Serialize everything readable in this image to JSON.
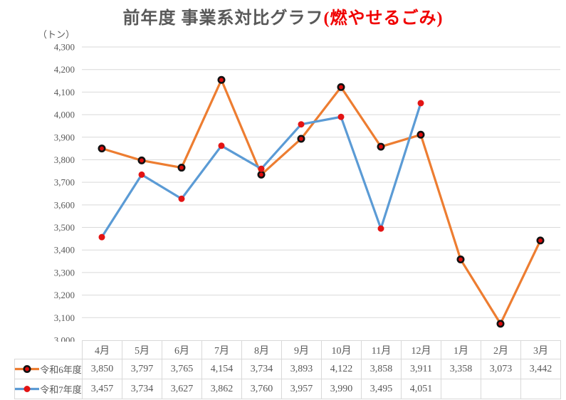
{
  "title": {
    "main": "前年度 事業系対比グラフ",
    "highlight": "(燃やせるごみ)"
  },
  "unit_label": "（トン）",
  "colors": {
    "grid": "#d9d9d9",
    "text": "#595959",
    "title_text": "#595959",
    "title_highlight": "#f00000",
    "table_border": "#d9d9d9",
    "series1_line": "#ED7D31",
    "series2_line": "#5B9BD5",
    "marker_red": "#e31414"
  },
  "chart_data": {
    "type": "line",
    "title": "前年度 事業系対比グラフ(燃やせるごみ)",
    "xlabel": "",
    "ylabel": "（トン）",
    "categories": [
      "4月",
      "5月",
      "6月",
      "7月",
      "8月",
      "9月",
      "10月",
      "11月",
      "12月",
      "1月",
      "2月",
      "3月"
    ],
    "series": [
      {
        "name": "令和6年度",
        "color": "#ED7D31",
        "marker": {
          "fill": "#dd0a0a",
          "stroke": "#111111",
          "stroke_width": 2.6,
          "radius": 4.2
        },
        "values": [
          3850,
          3797,
          3765,
          4154,
          3734,
          3893,
          4122,
          3858,
          3911,
          3358,
          3073,
          3442
        ]
      },
      {
        "name": "令和7年度",
        "color": "#5B9BD5",
        "marker": {
          "fill": "#e31414",
          "stroke": "none",
          "stroke_width": 0,
          "radius": 4.5
        },
        "values": [
          3457,
          3734,
          3627,
          3862,
          3760,
          3957,
          3990,
          3495,
          4051,
          null,
          null,
          null
        ]
      }
    ],
    "ylim": [
      3000,
      4300
    ],
    "ytick_step": 100,
    "grid": true,
    "legend_position": "table-left"
  }
}
